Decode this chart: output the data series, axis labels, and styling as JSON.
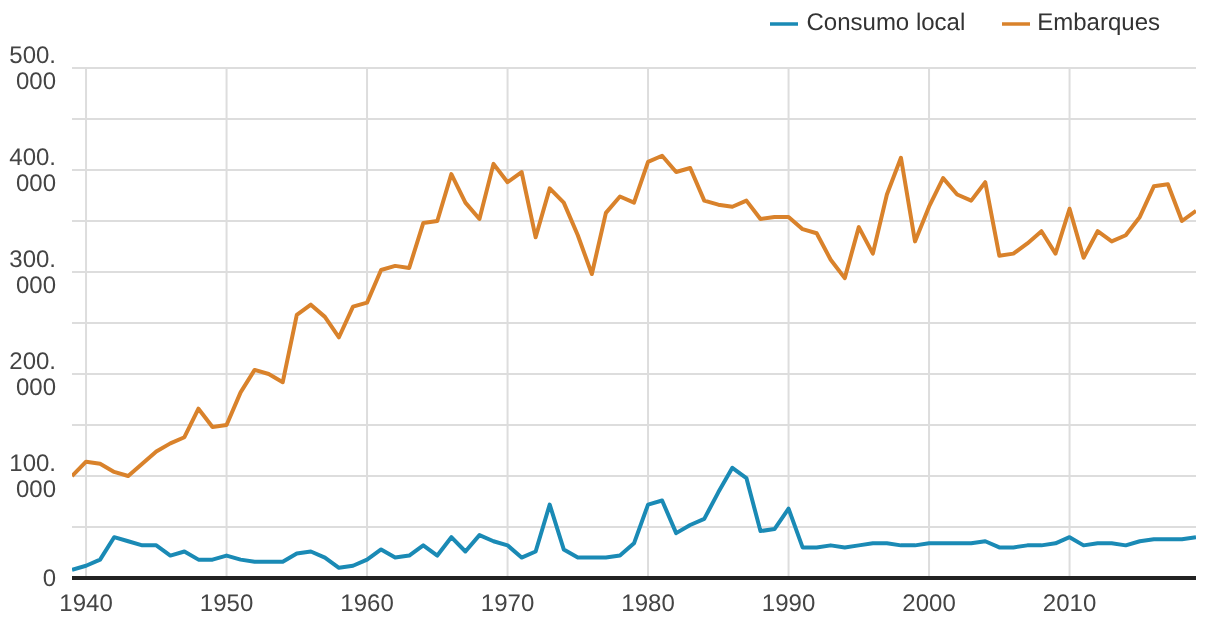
{
  "chart_data": {
    "type": "line",
    "x": [
      1939,
      1940,
      1941,
      1942,
      1943,
      1944,
      1945,
      1946,
      1947,
      1948,
      1949,
      1950,
      1951,
      1952,
      1953,
      1954,
      1955,
      1956,
      1957,
      1958,
      1959,
      1960,
      1961,
      1962,
      1963,
      1964,
      1965,
      1966,
      1967,
      1968,
      1969,
      1970,
      1971,
      1972,
      1973,
      1974,
      1975,
      1976,
      1977,
      1978,
      1979,
      1980,
      1981,
      1982,
      1983,
      1984,
      1985,
      1986,
      1987,
      1988,
      1989,
      1990,
      1991,
      1992,
      1993,
      1994,
      1995,
      1996,
      1997,
      1998,
      1999,
      2000,
      2001,
      2002,
      2003,
      2004,
      2005,
      2006,
      2007,
      2008,
      2009,
      2010,
      2011,
      2012,
      2013,
      2014,
      2015,
      2016,
      2017,
      2018,
      2019
    ],
    "series": [
      {
        "name": "Embarques",
        "color": "#d9822b",
        "values": [
          100000,
          114000,
          112000,
          104000,
          100000,
          112000,
          124000,
          132000,
          138000,
          166000,
          148000,
          150000,
          182000,
          204000,
          200000,
          192000,
          258000,
          268000,
          256000,
          236000,
          266000,
          270000,
          302000,
          306000,
          304000,
          348000,
          350000,
          396000,
          368000,
          352000,
          406000,
          388000,
          398000,
          334000,
          382000,
          368000,
          336000,
          298000,
          358000,
          374000,
          368000,
          408000,
          414000,
          398000,
          402000,
          370000,
          366000,
          364000,
          370000,
          352000,
          354000,
          354000,
          342000,
          338000,
          312000,
          294000,
          344000,
          318000,
          376000,
          412000,
          330000,
          364000,
          392000,
          376000,
          370000,
          388000,
          316000,
          318000,
          328000,
          340000,
          318000,
          362000,
          314000,
          340000,
          330000,
          336000,
          354000,
          384000,
          386000,
          350000,
          360000
        ]
      },
      {
        "name": "Consumo local",
        "color": "#1a8ab5",
        "values": [
          8000,
          12000,
          18000,
          40000,
          36000,
          32000,
          32000,
          22000,
          26000,
          18000,
          18000,
          22000,
          18000,
          16000,
          16000,
          16000,
          24000,
          26000,
          20000,
          10000,
          12000,
          18000,
          28000,
          20000,
          22000,
          32000,
          22000,
          40000,
          26000,
          42000,
          36000,
          32000,
          20000,
          26000,
          72000,
          28000,
          20000,
          20000,
          20000,
          22000,
          34000,
          72000,
          76000,
          44000,
          52000,
          58000,
          84000,
          108000,
          98000,
          46000,
          48000,
          68000,
          30000,
          30000,
          32000,
          30000,
          32000,
          34000,
          34000,
          32000,
          32000,
          34000,
          34000,
          34000,
          34000,
          36000,
          30000,
          30000,
          32000,
          32000,
          34000,
          40000,
          32000,
          34000,
          34000,
          32000,
          36000,
          38000,
          38000,
          38000,
          40000
        ]
      }
    ],
    "xlim": [
      1939,
      2019
    ],
    "xticks": [
      1940,
      1950,
      1960,
      1970,
      1980,
      1990,
      2000,
      2010
    ],
    "ylim": [
      0,
      500000
    ],
    "yticks": [
      {
        "value": 0,
        "label": "0"
      },
      {
        "value": 50000,
        "label": null
      },
      {
        "value": 100000,
        "label": "100.000"
      },
      {
        "value": 150000,
        "label": null
      },
      {
        "value": 200000,
        "label": "200.000"
      },
      {
        "value": 250000,
        "label": null
      },
      {
        "value": 300000,
        "label": "300.000"
      },
      {
        "value": 350000,
        "label": null
      },
      {
        "value": 400000,
        "label": "400.000"
      },
      {
        "value": 450000,
        "label": null
      },
      {
        "value": 500000,
        "label": "500.000"
      }
    ],
    "grid": true,
    "legend": "top right",
    "marker": "none",
    "line_style": "solid"
  }
}
